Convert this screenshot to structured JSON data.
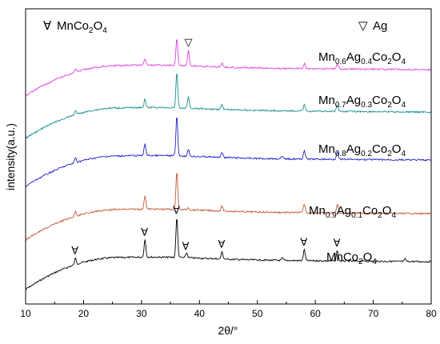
{
  "chart_data": {
    "type": "line",
    "xlabel": "2θ/°",
    "ylabel": "intensity(a.u.)",
    "xlim": [
      10,
      80
    ],
    "xticks": [
      10,
      20,
      30,
      40,
      50,
      60,
      70,
      80
    ],
    "grid": false,
    "legend": [
      {
        "symbol": "∀",
        "label_main": "MnCo",
        "label_sub": "2",
        "label_main2": "O",
        "label_sub2": "4"
      },
      {
        "symbol": "▽",
        "label_main": "Ag"
      }
    ],
    "series": [
      {
        "name": "MnCo2O4",
        "label_parts": [
          [
            "MnCo",
            ""
          ],
          [
            "2",
            "sub"
          ],
          [
            "O",
            ""
          ],
          [
            "4",
            "sub"
          ]
        ],
        "color": "#000000",
        "offset": 0,
        "peaks": [
          [
            18.6,
            8
          ],
          [
            30.6,
            22
          ],
          [
            36.1,
            50
          ],
          [
            37.8,
            6
          ],
          [
            43.9,
            9
          ],
          [
            54.3,
            3
          ],
          [
            58.1,
            14
          ],
          [
            63.8,
            13
          ],
          [
            75.5,
            3
          ]
        ],
        "markers": [
          {
            "x": 18.6,
            "type": "MnCo2O4"
          },
          {
            "x": 30.6,
            "type": "MnCo2O4"
          },
          {
            "x": 36.1,
            "type": "MnCo2O4"
          },
          {
            "x": 37.7,
            "type": "MnCo2O4"
          },
          {
            "x": 43.9,
            "type": "MnCo2O4"
          },
          {
            "x": 58.1,
            "type": "MnCo2O4"
          },
          {
            "x": 63.8,
            "type": "MnCo2O4"
          }
        ]
      },
      {
        "name": "Mn0.9Ag0.1Co2O4",
        "label_parts": [
          [
            "Mn",
            ""
          ],
          [
            "0.9",
            "sub"
          ],
          [
            "Ag",
            ""
          ],
          [
            "0.1",
            "sub"
          ],
          [
            "Co",
            ""
          ],
          [
            "2",
            "sub"
          ],
          [
            "O",
            ""
          ],
          [
            "4",
            "sub"
          ]
        ],
        "color": "#c05a3a",
        "offset": 1,
        "peaks": [
          [
            18.6,
            6
          ],
          [
            30.6,
            17
          ],
          [
            36.1,
            48
          ],
          [
            38.1,
            3
          ],
          [
            43.9,
            6
          ],
          [
            58.1,
            11
          ],
          [
            63.8,
            11
          ]
        ]
      },
      {
        "name": "Mn0.8Ag0.2Co2O4",
        "label_parts": [
          [
            "Mn",
            ""
          ],
          [
            "0.8",
            "sub"
          ],
          [
            "Ag",
            ""
          ],
          [
            "0.2",
            "sub"
          ],
          [
            "Co",
            ""
          ],
          [
            "2",
            "sub"
          ],
          [
            "O",
            ""
          ],
          [
            "4",
            "sub"
          ]
        ],
        "color": "#2222cc",
        "offset": 2,
        "peaks": [
          [
            18.6,
            6
          ],
          [
            30.6,
            15
          ],
          [
            36.1,
            50
          ],
          [
            38.1,
            8
          ],
          [
            43.9,
            7
          ],
          [
            54.3,
            3
          ],
          [
            58.1,
            11
          ],
          [
            63.8,
            10
          ]
        ]
      },
      {
        "name": "Mn0.7Ag0.3Co2O4",
        "label_parts": [
          [
            "Mn",
            ""
          ],
          [
            "0.7",
            "sub"
          ],
          [
            "Ag",
            ""
          ],
          [
            "0.3",
            "sub"
          ],
          [
            "Co",
            ""
          ],
          [
            "2",
            "sub"
          ],
          [
            "O",
            ""
          ],
          [
            "4",
            "sub"
          ]
        ],
        "color": "#1a9090",
        "offset": 3,
        "peaks": [
          [
            18.6,
            5
          ],
          [
            30.6,
            11
          ],
          [
            36.1,
            44
          ],
          [
            38.1,
            14
          ],
          [
            43.9,
            6
          ],
          [
            58.1,
            8
          ],
          [
            63.8,
            9
          ]
        ]
      },
      {
        "name": "Mn0.6Ag0.4Co2O4",
        "label_parts": [
          [
            "Mn",
            ""
          ],
          [
            "0.6",
            "sub"
          ],
          [
            "Ag",
            ""
          ],
          [
            "0.4",
            "sub"
          ],
          [
            "Co",
            ""
          ],
          [
            "2",
            "sub"
          ],
          [
            "O",
            ""
          ],
          [
            "4",
            "sub"
          ]
        ],
        "color": "#e040e0",
        "offset": 4,
        "peaks": [
          [
            18.6,
            4
          ],
          [
            30.6,
            8
          ],
          [
            36.1,
            34
          ],
          [
            38.1,
            20
          ],
          [
            43.9,
            5
          ],
          [
            58.1,
            6
          ],
          [
            63.8,
            6
          ]
        ],
        "markers": [
          {
            "x": 38.1,
            "type": "Ag"
          }
        ]
      }
    ]
  }
}
